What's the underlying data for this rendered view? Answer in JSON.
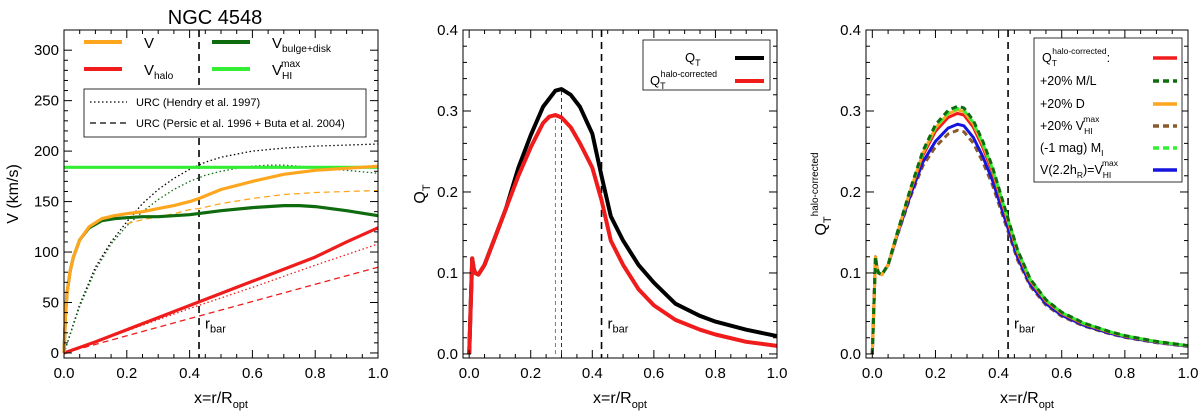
{
  "chart_data": [
    {
      "type": "line",
      "title": "NGC 4548",
      "xlabel": "x=r/R",
      "xlabel_sub": "opt",
      "ylabel": "V (km/s)",
      "xlim": [
        0,
        1
      ],
      "ylim": [
        -5,
        320
      ],
      "xticks": [
        "0.0",
        "0.2",
        "0.4",
        "0.6",
        "0.8",
        "1.0"
      ],
      "yticks": [
        "0",
        "50",
        "100",
        "150",
        "200",
        "250",
        "300"
      ],
      "legend_position": "top",
      "annotation": {
        "text": "r",
        "sub": "bar",
        "x": 0.43
      },
      "series": [
        {
          "name": "V",
          "color": "#ffa61f",
          "style": "solid",
          "x": [
            0,
            0.005,
            0.01,
            0.02,
            0.03,
            0.05,
            0.08,
            0.12,
            0.16,
            0.2,
            0.25,
            0.3,
            0.35,
            0.4,
            0.43,
            0.5,
            0.6,
            0.7,
            0.8,
            0.9,
            1.0
          ],
          "y": [
            0,
            40,
            60,
            82,
            95,
            112,
            125,
            133,
            136,
            138,
            140,
            143,
            146,
            150,
            153,
            162,
            170,
            177,
            181,
            183,
            185
          ]
        },
        {
          "name": "halo",
          "label_main": "V",
          "label_sub": "halo",
          "color": "#f01c1c",
          "style": "solid",
          "x": [
            0,
            0.1,
            0.2,
            0.3,
            0.4,
            0.5,
            0.6,
            0.7,
            0.8,
            0.9,
            1.0
          ],
          "y": [
            0,
            11,
            23,
            35,
            47,
            59,
            71,
            83,
            95,
            110,
            124
          ]
        },
        {
          "name": "bulge+disk",
          "label_main": "V",
          "label_sub": "bulge+disk",
          "color": "#0e6b0e",
          "style": "solid",
          "x": [
            0,
            0.005,
            0.01,
            0.02,
            0.03,
            0.05,
            0.08,
            0.12,
            0.16,
            0.2,
            0.25,
            0.3,
            0.35,
            0.4,
            0.45,
            0.5,
            0.6,
            0.7,
            0.75,
            0.8,
            0.9,
            1.0
          ],
          "y": [
            0,
            40,
            60,
            82,
            95,
            112,
            124,
            131,
            133,
            134,
            135,
            135,
            136,
            137,
            139,
            141,
            144,
            146,
            146,
            145,
            141,
            136
          ]
        },
        {
          "name": "HI max",
          "label_main": "V",
          "label_sub": "HI",
          "label_sup": "max",
          "color": "#33ee33",
          "style": "solid",
          "x": [
            0,
            1.0
          ],
          "y": [
            184,
            184
          ]
        },
        {
          "name": "URC (Hendry et al. 1997)",
          "color": "#000000",
          "style": "dotted",
          "x": [
            0,
            0.05,
            0.1,
            0.15,
            0.2,
            0.25,
            0.3,
            0.35,
            0.4,
            0.45,
            0.5,
            0.6,
            0.7,
            0.8,
            0.9,
            1.0
          ],
          "y": [
            0,
            48,
            85,
            110,
            130,
            148,
            162,
            173,
            182,
            189,
            194,
            200,
            203,
            205,
            206,
            207
          ]
        },
        {
          "name": "URC (Hendry) halo",
          "color": "#f01c1c",
          "style": "dotted",
          "x": [
            0,
            0.2,
            0.4,
            0.6,
            0.8,
            1.0
          ],
          "y": [
            0,
            22,
            44,
            65,
            87,
            108
          ]
        },
        {
          "name": "URC (Hendry) disk",
          "color": "#0e6b0e",
          "style": "dotted",
          "x": [
            0,
            0.05,
            0.1,
            0.15,
            0.2,
            0.25,
            0.3,
            0.35,
            0.4,
            0.45,
            0.5,
            0.55,
            0.6,
            0.65,
            0.7,
            0.8,
            0.9,
            1.0
          ],
          "y": [
            0,
            46,
            82,
            108,
            126,
            140,
            152,
            162,
            170,
            176,
            180,
            183,
            185,
            186,
            186,
            184,
            181,
            178
          ]
        },
        {
          "name": "URC (Persic et al. 1996 + Buta et al. 2004)",
          "color": "#ffa61f",
          "style": "dashed",
          "x": [
            0.2,
            0.25,
            0.3,
            0.35,
            0.4,
            0.43,
            0.5,
            0.6,
            0.7,
            0.8,
            0.9,
            1.0
          ],
          "y": [
            128,
            132,
            135,
            138,
            142,
            143,
            148,
            153,
            157,
            159,
            160,
            161
          ]
        },
        {
          "name": "URC (Persic) halo",
          "color": "#f01c1c",
          "style": "dashed",
          "x": [
            0,
            0.2,
            0.4,
            0.6,
            0.8,
            1.0
          ],
          "y": [
            0,
            17,
            34,
            51,
            68,
            85
          ]
        }
      ]
    },
    {
      "type": "line",
      "xlabel": "x=r/R",
      "xlabel_sub": "opt",
      "ylabel": "Q",
      "ylabel_sub": "T",
      "xlim": [
        -0.02,
        1
      ],
      "ylim": [
        -0.005,
        0.4
      ],
      "xticks": [
        "0.0",
        "0.2",
        "0.4",
        "0.6",
        "0.8",
        "1.0"
      ],
      "yticks": [
        "0.0",
        "0.1",
        "0.2",
        "0.3",
        "0.4"
      ],
      "legend_position": "top-right",
      "annotation": {
        "text": "r",
        "sub": "bar",
        "x": 0.43
      },
      "peak_markers": [
        0.3,
        0.28
      ],
      "series": [
        {
          "name": "Q_T",
          "label_main": "Q",
          "label_sub": "T",
          "color": "#000000",
          "x": [
            0,
            0.005,
            0.01,
            0.015,
            0.02,
            0.03,
            0.05,
            0.08,
            0.12,
            0.16,
            0.2,
            0.24,
            0.28,
            0.3,
            0.33,
            0.36,
            0.4,
            0.43,
            0.46,
            0.5,
            0.55,
            0.6,
            0.67,
            0.75,
            0.8,
            0.9,
            1.0
          ],
          "y": [
            0,
            0.06,
            0.118,
            0.105,
            0.1,
            0.098,
            0.11,
            0.14,
            0.18,
            0.23,
            0.27,
            0.305,
            0.325,
            0.327,
            0.32,
            0.305,
            0.272,
            0.22,
            0.17,
            0.14,
            0.11,
            0.088,
            0.062,
            0.047,
            0.04,
            0.03,
            0.022
          ]
        },
        {
          "name": "Q_T halo-corrected",
          "label_main": "Q",
          "label_sub": "T",
          "label_sup": "halo-corrected",
          "color": "#f01c1c",
          "x": [
            0,
            0.005,
            0.01,
            0.015,
            0.02,
            0.03,
            0.05,
            0.08,
            0.12,
            0.16,
            0.2,
            0.24,
            0.26,
            0.28,
            0.3,
            0.33,
            0.36,
            0.4,
            0.43,
            0.46,
            0.5,
            0.55,
            0.6,
            0.67,
            0.75,
            0.8,
            0.9,
            1.0
          ],
          "y": [
            0,
            0.06,
            0.118,
            0.105,
            0.1,
            0.098,
            0.11,
            0.14,
            0.18,
            0.22,
            0.255,
            0.285,
            0.293,
            0.295,
            0.292,
            0.28,
            0.26,
            0.23,
            0.19,
            0.14,
            0.11,
            0.08,
            0.06,
            0.042,
            0.03,
            0.024,
            0.015,
            0.01
          ]
        }
      ]
    },
    {
      "type": "line",
      "xlabel": "x=r/R",
      "xlabel_sub": "opt",
      "ylabel": "Q",
      "ylabel_sub": "T",
      "ylabel_sup": "halo-corrected",
      "xlim": [
        -0.02,
        1
      ],
      "ylim": [
        -0.005,
        0.4
      ],
      "xticks": [
        "0.0",
        "0.2",
        "0.4",
        "0.6",
        "0.8",
        "1.0"
      ],
      "yticks": [
        "0.0",
        "0.1",
        "0.2",
        "0.3",
        "0.4"
      ],
      "legend_position": "top-right",
      "annotation": {
        "text": "r",
        "sub": "bar",
        "x": 0.43
      },
      "series": [
        {
          "name": "Q_T halo-corrected",
          "label_main": "Q",
          "label_sub": "T",
          "label_sup": "halo-corrected",
          "label_tail": ":",
          "color": "#f01c1c",
          "style": "solid",
          "scale": 1.0
        },
        {
          "name": "+20% M/L",
          "label_main": "+20% M/L",
          "color": "#0e6b0e",
          "style": "dashed",
          "scale": 1.03
        },
        {
          "name": "+20% D",
          "label_main": "+20% D",
          "color": "#ffa61f",
          "style": "solid",
          "scale": 1.015
        },
        {
          "name": "+20% V_HI max",
          "label_main": "+20% V",
          "label_sub": "HI",
          "label_sup": "max",
          "color": "#8b5a2b",
          "style": "dashed",
          "scale": 0.93
        },
        {
          "name": "(-1 mag) M_I",
          "label_main": "(-1 mag) M",
          "label_sub": "I",
          "color": "#33ee33",
          "style": "dashed",
          "scale": 1.02
        },
        {
          "name": "V(2.2h_R)=V_HI max",
          "label_main": "V(2.2h",
          "label_sub": "R",
          "label_tail": ")=V",
          "label_sub2": "HI",
          "label_sup2": "max",
          "color": "#1515dd",
          "style": "solid",
          "scale": 0.955
        }
      ],
      "base_curve": {
        "x": [
          0,
          0.005,
          0.01,
          0.015,
          0.02,
          0.03,
          0.05,
          0.08,
          0.12,
          0.16,
          0.2,
          0.24,
          0.27,
          0.29,
          0.32,
          0.35,
          0.38,
          0.42,
          0.46,
          0.5,
          0.55,
          0.6,
          0.67,
          0.75,
          0.8,
          0.9,
          1.0
        ],
        "y": [
          0,
          0.06,
          0.12,
          0.106,
          0.1,
          0.098,
          0.11,
          0.15,
          0.2,
          0.245,
          0.275,
          0.292,
          0.297,
          0.295,
          0.28,
          0.255,
          0.225,
          0.175,
          0.125,
          0.09,
          0.065,
          0.05,
          0.037,
          0.027,
          0.022,
          0.015,
          0.01
        ]
      }
    }
  ]
}
